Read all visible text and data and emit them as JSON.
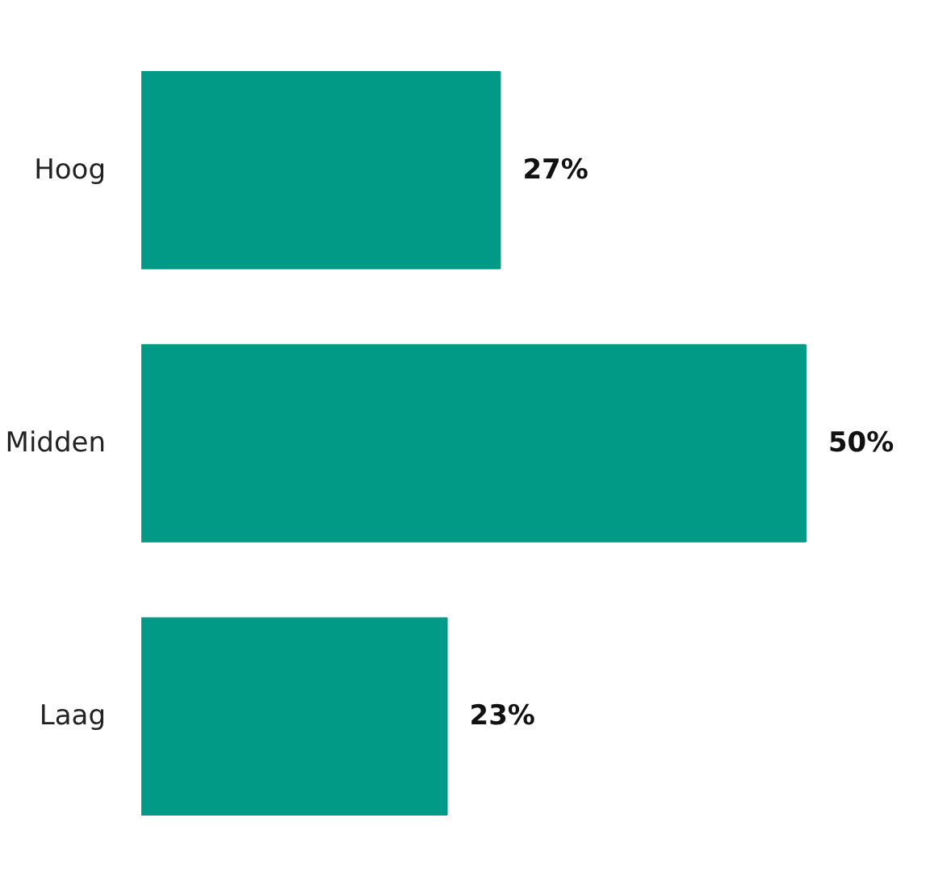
{
  "chart_data": {
    "type": "bar",
    "orientation": "horizontal",
    "categories": [
      "Hoog",
      "Midden",
      "Laag"
    ],
    "values": [
      27,
      50,
      23
    ],
    "value_labels": [
      "27%",
      "50%",
      "23%"
    ],
    "color": "#009a87",
    "tick_labels": "y",
    "grid": false
  }
}
